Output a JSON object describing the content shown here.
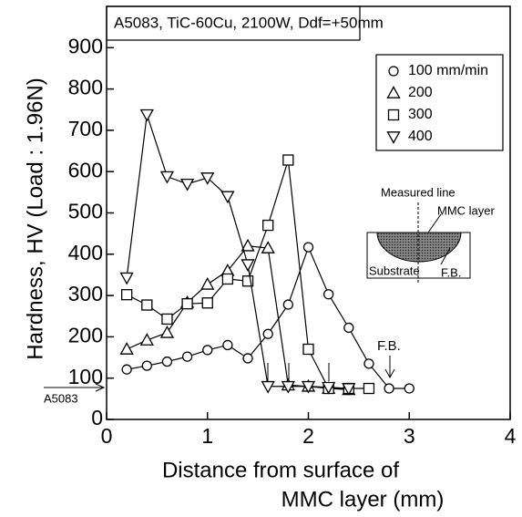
{
  "chart_data": {
    "type": "line",
    "title": "A5083, TiC-60Cu, 2100W, Ddf=+50mm",
    "xlabel": [
      "Distance from surface of",
      "MMC layer (mm)"
    ],
    "ylabel": "Hardness, HV (Load : 1.96N)",
    "xlim": [
      0,
      4
    ],
    "xticks": [
      0,
      1,
      2,
      3,
      4
    ],
    "ylim": [
      0,
      1000
    ],
    "yticks": [
      0,
      100,
      200,
      300,
      400,
      500,
      600,
      700,
      800,
      900
    ],
    "legend": "upper right",
    "series": [
      {
        "name": "100 mm/min",
        "color": "#000000",
        "marker": "circle",
        "x": [
          0.2,
          0.4,
          0.6,
          0.8,
          1.0,
          1.2,
          1.4,
          1.6,
          1.8,
          2.0,
          2.2,
          2.4,
          2.6,
          2.8,
          3.0
        ],
        "values": [
          121,
          130,
          140,
          152,
          168,
          180,
          148,
          207,
          278,
          417,
          303,
          222,
          135,
          75,
          75
        ]
      },
      {
        "name": "200",
        "color": "#000000",
        "marker": "triangle-up",
        "x": [
          0.2,
          0.4,
          0.6,
          0.8,
          1.0,
          1.2,
          1.4,
          1.6,
          1.8,
          2.0,
          2.2,
          2.4
        ],
        "values": [
          170,
          192,
          210,
          283,
          327,
          360,
          420,
          415,
          83,
          80,
          75,
          72
        ]
      },
      {
        "name": "300",
        "color": "#000000",
        "marker": "square",
        "x": [
          0.2,
          0.4,
          0.6,
          0.8,
          1.0,
          1.2,
          1.4,
          1.6,
          1.8,
          2.0,
          2.2,
          2.4,
          2.6
        ],
        "values": [
          302,
          277,
          243,
          280,
          282,
          340,
          335,
          470,
          628,
          170,
          75,
          75,
          75
        ]
      },
      {
        "name": "400",
        "color": "#000000",
        "marker": "triangle-down",
        "x": [
          0.2,
          0.4,
          0.6,
          0.8,
          1.0,
          1.2,
          1.4,
          1.6,
          1.8,
          2.0,
          2.2,
          2.4
        ],
        "values": [
          343,
          738,
          588,
          570,
          585,
          540,
          375,
          80,
          80,
          80,
          78,
          75
        ]
      }
    ],
    "annotations": {
      "fb": "F.B.",
      "base": "A5083"
    },
    "inset": {
      "measured": "Measured line",
      "layer": "MMC layer",
      "substrate": "Substrate",
      "fb": "F.B."
    }
  }
}
